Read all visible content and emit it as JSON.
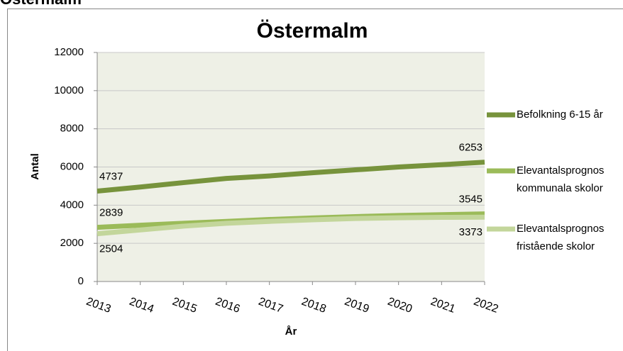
{
  "page_heading": "Östermalm",
  "chart_data": {
    "type": "line",
    "title": "Östermalm",
    "x_label": "År",
    "y_label": "Antal",
    "categories": [
      "2013",
      "2014",
      "2015",
      "2016",
      "2017",
      "2018",
      "2019",
      "2020",
      "2021",
      "2022"
    ],
    "series": [
      {
        "name": "Befolkning 6-15 år",
        "color": "#77933c",
        "values": [
          4737,
          4950,
          5180,
          5400,
          5530,
          5700,
          5850,
          6000,
          6120,
          6253
        ]
      },
      {
        "name": "Elevantalsprognos kommunala skolor",
        "color": "#9bbb59",
        "values": [
          2839,
          2950,
          3050,
          3150,
          3250,
          3330,
          3400,
          3460,
          3500,
          3545
        ]
      },
      {
        "name": "Elevantalsprognos fristående skolor",
        "color": "#c3d69b",
        "values": [
          2504,
          2700,
          2900,
          3050,
          3150,
          3230,
          3300,
          3340,
          3360,
          3373
        ]
      }
    ],
    "ylim": [
      0,
      12000
    ],
    "yticks": [
      0,
      2000,
      4000,
      6000,
      8000,
      10000,
      12000
    ],
    "grid": true,
    "legend": "right"
  }
}
